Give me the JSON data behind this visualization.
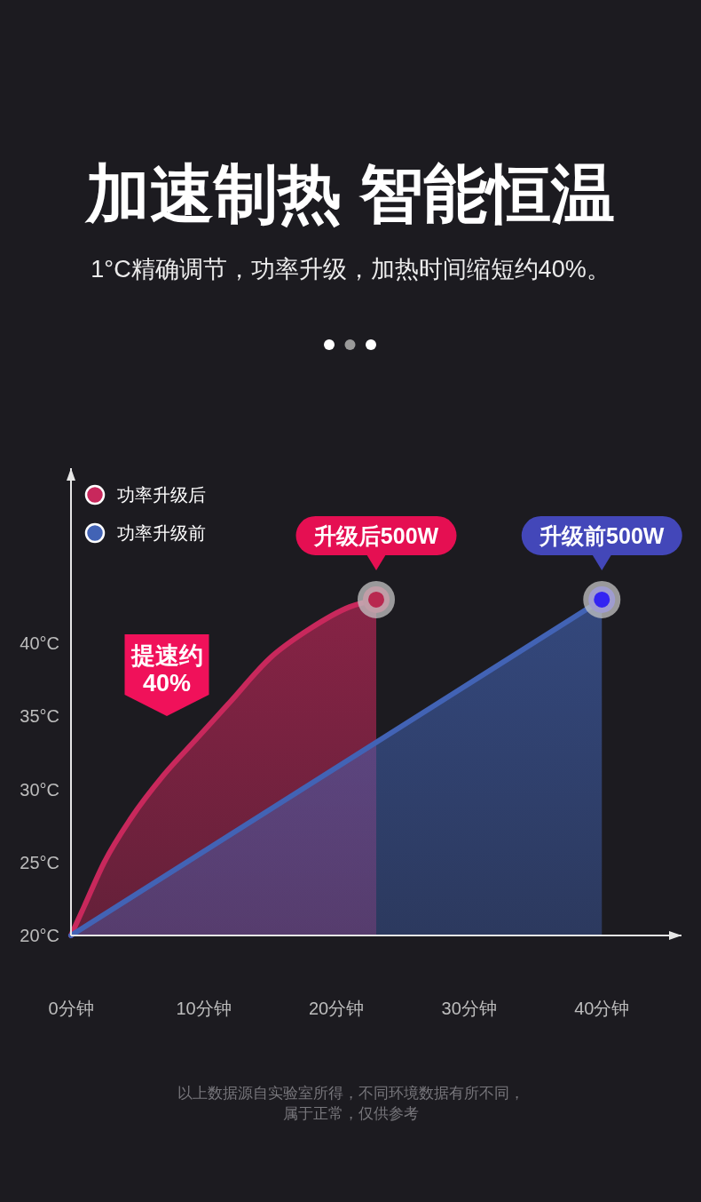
{
  "chart_data": {
    "type": "area",
    "title": "加速制热 智能恒温",
    "subtitle": "1°C精确调节，功率升级，加热时间缩短约40%。",
    "xlim": [
      0,
      46
    ],
    "xticks": [
      {
        "value": 0,
        "label": "0分钟"
      },
      {
        "value": 10,
        "label": "10分钟"
      },
      {
        "value": 20,
        "label": "20分钟"
      },
      {
        "value": 30,
        "label": "30分钟"
      },
      {
        "value": 40,
        "label": "40分钟"
      }
    ],
    "ylim": [
      20,
      52
    ],
    "yticks": [
      {
        "value": 20,
        "label": "20°C"
      },
      {
        "value": 25,
        "label": "25°C"
      },
      {
        "value": 30,
        "label": "30°C"
      },
      {
        "value": 35,
        "label": "35°C"
      },
      {
        "value": 40,
        "label": "40°C"
      }
    ],
    "series": [
      {
        "name": "功率升级后",
        "color": "#c8285c",
        "x": [
          0,
          1,
          2.5,
          4.5,
          7,
          9.5,
          12,
          15,
          18,
          21,
          23
        ],
        "values": [
          20,
          22,
          25,
          28,
          31,
          33.5,
          36,
          39,
          41,
          42.5,
          43
        ]
      },
      {
        "name": "功率升级前",
        "color": "#4263b5",
        "x": [
          0,
          40
        ],
        "values": [
          20,
          43
        ]
      },
      {
        "type": "scatter",
        "color": "#b8284f",
        "marker": "circle",
        "x": [
          23
        ],
        "values": [
          43
        ]
      },
      {
        "type": "scatter",
        "color": "#3324f2",
        "marker": "circle",
        "x": [
          40
        ],
        "values": [
          43
        ]
      }
    ],
    "legend": "top left",
    "annotations": [
      {
        "text": "升级后500W",
        "x": 23,
        "y": 43
      },
      {
        "text": "升级前500W",
        "x": 40,
        "y": 43
      },
      "提速约40%",
      "以上数据源自实验室所得，不同环境数据有所不同，属于正常，仅供参考"
    ]
  }
}
